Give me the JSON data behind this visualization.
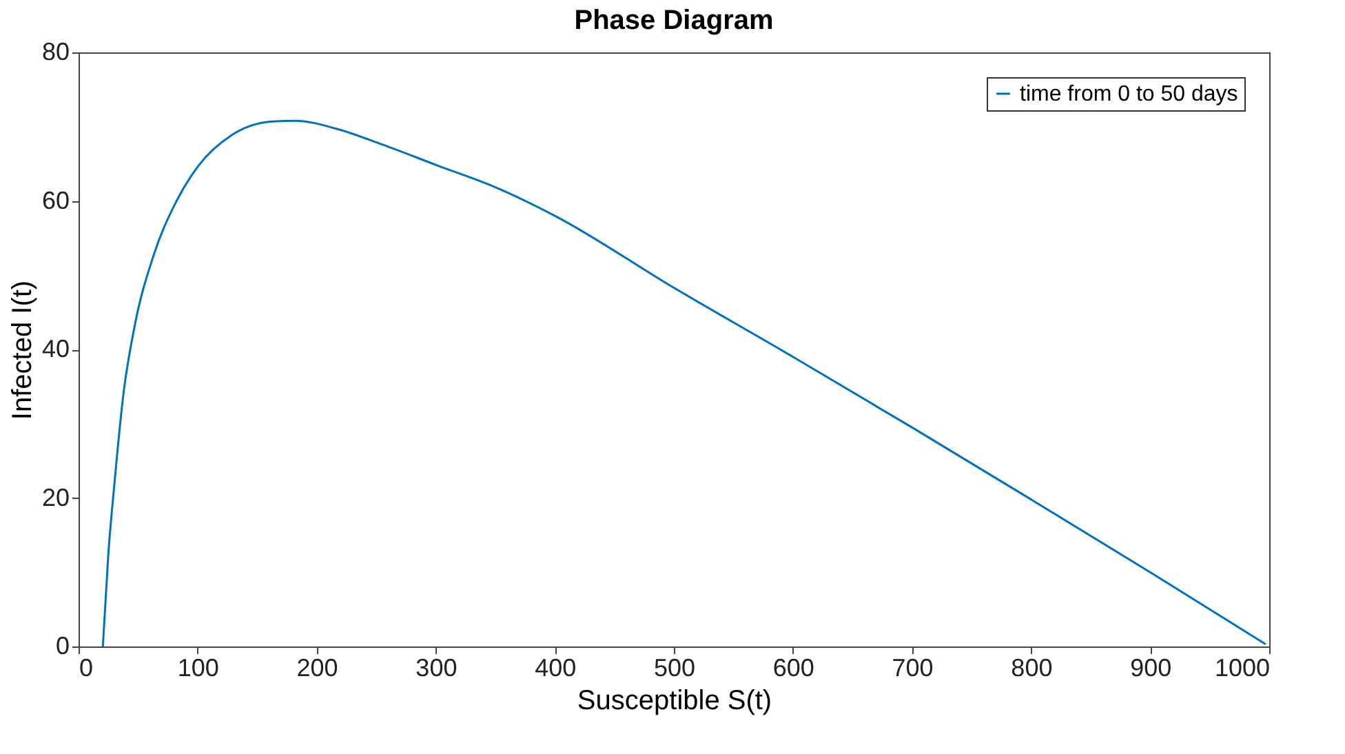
{
  "chart_data": {
    "type": "line",
    "title": "Phase Diagram",
    "xlabel": "Susceptible S(t)",
    "ylabel": "Infected I(t)",
    "x": [
      20.4,
      25,
      30,
      37.7,
      47.3,
      62.7,
      82,
      101,
      128,
      163,
      182,
      217,
      255,
      301,
      347.6,
      400,
      500,
      600,
      700,
      800,
      900,
      997
    ],
    "series": [
      {
        "name": "time from 0 to 50 days",
        "color": "#0072bd",
        "values": [
          0,
          12.4,
          21.7,
          34,
          43.3,
          52.5,
          59.9,
          64.8,
          68.8,
          70.7,
          70.8,
          69.7,
          67.6,
          64.8,
          62,
          58,
          48.3,
          39,
          29.5,
          19.8,
          10,
          0.3
        ]
      }
    ],
    "xlim": [
      0,
      1000
    ],
    "xticks": [
      0,
      100,
      200,
      300,
      400,
      500,
      600,
      700,
      800,
      900,
      1000
    ],
    "ylim": [
      0,
      80
    ],
    "yticks": [
      0,
      20,
      40,
      60,
      80
    ],
    "grid": false,
    "legend": "top right",
    "marker": "none",
    "line_style": "solid"
  }
}
